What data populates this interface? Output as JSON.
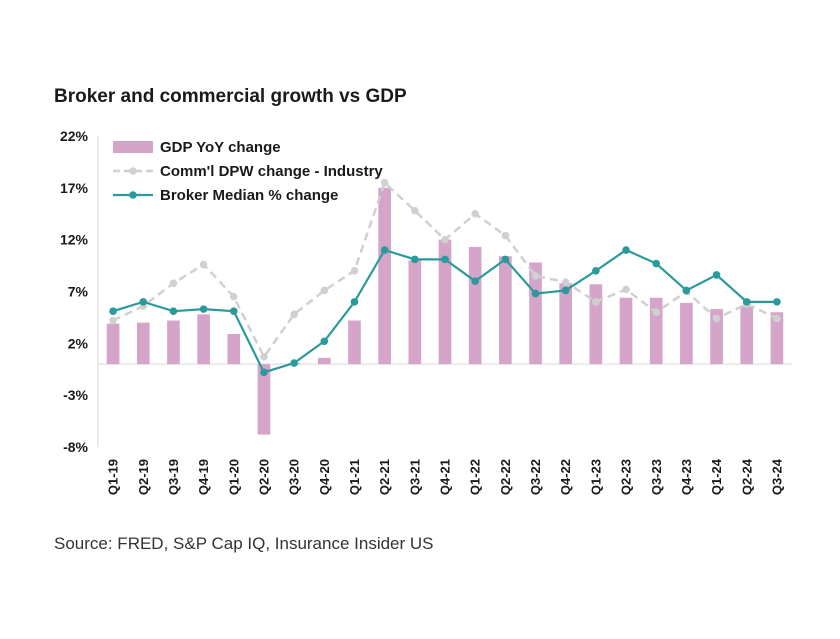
{
  "chart_data": {
    "type": "bar",
    "title": "Broker and commercial growth vs GDP",
    "source": "Source: FRED, S&P Cap IQ, Insurance Insider US",
    "categories": [
      "Q1-19",
      "Q2-19",
      "Q3-19",
      "Q4-19",
      "Q1-20",
      "Q2-20",
      "Q3-20",
      "Q4-20",
      "Q1-21",
      "Q2-21",
      "Q3-21",
      "Q4-21",
      "Q1-22",
      "Q2-22",
      "Q3-22",
      "Q4-22",
      "Q1-23",
      "Q2-23",
      "Q3-23",
      "Q4-23",
      "Q1-24",
      "Q2-24",
      "Q3-24"
    ],
    "ylim": [
      -8,
      22
    ],
    "yticks": [
      -8,
      -3,
      2,
      7,
      12,
      17,
      22
    ],
    "ytick_labels": [
      "-8%",
      "-3%",
      "2%",
      "7%",
      "12%",
      "17%",
      "22%"
    ],
    "xlabel": "",
    "ylabel": "",
    "legend_position": "top-left",
    "series": [
      {
        "name": "GDP YoY change",
        "kind": "bar",
        "color": "#d4a5c8",
        "values": [
          3.9,
          4.0,
          4.2,
          4.8,
          2.9,
          -6.8,
          0.1,
          0.6,
          4.2,
          17.0,
          10.0,
          12.0,
          11.3,
          10.4,
          9.8,
          7.8,
          7.7,
          6.4,
          6.4,
          5.9,
          5.3,
          5.6,
          5.0
        ]
      },
      {
        "name": "Comm'l DPW change - Industry",
        "kind": "dashed-line",
        "color": "#d0d0d0",
        "values": [
          4.2,
          5.6,
          7.8,
          9.6,
          6.5,
          0.7,
          4.8,
          7.1,
          9.0,
          17.5,
          14.8,
          12.0,
          14.5,
          12.4,
          8.5,
          7.9,
          6.0,
          7.2,
          5.0,
          7.0,
          4.4,
          5.8,
          4.4
        ]
      },
      {
        "name": "Broker Median % change",
        "kind": "line",
        "color": "#2a9a9a",
        "values": [
          5.1,
          6.0,
          5.1,
          5.3,
          5.1,
          -0.8,
          0.1,
          2.2,
          6.0,
          11.0,
          10.1,
          10.1,
          8.0,
          10.1,
          6.8,
          7.1,
          9.0,
          11.0,
          9.7,
          7.1,
          8.6,
          6.0,
          6.0
        ]
      }
    ]
  }
}
